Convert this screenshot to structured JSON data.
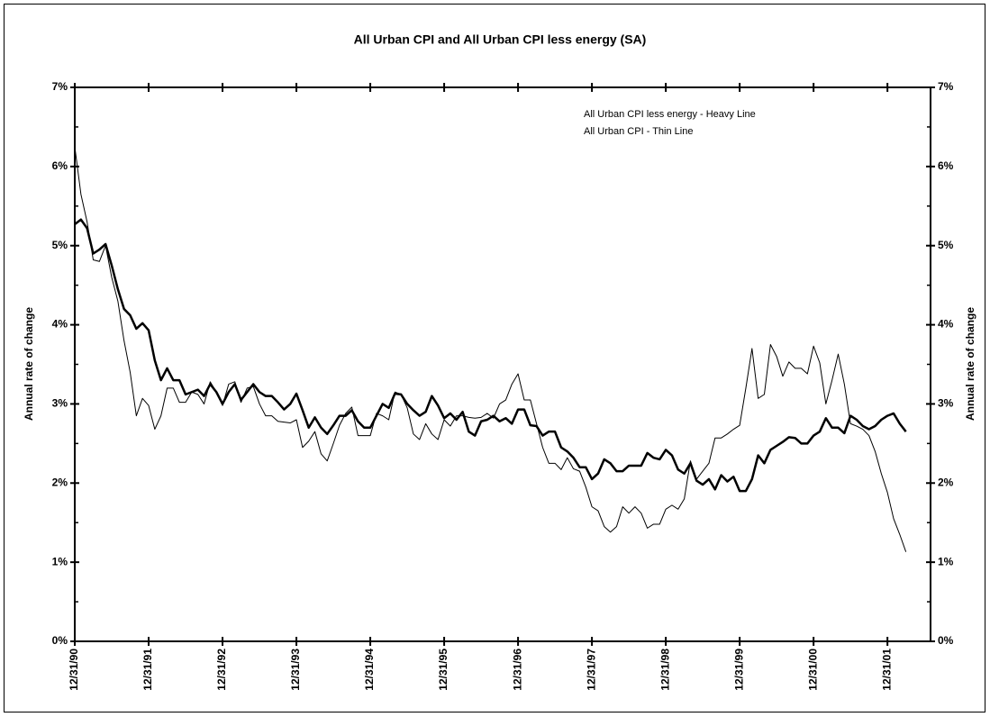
{
  "chart_data": {
    "type": "line",
    "title": "All Urban CPI and All Urban CPI less energy  (SA)",
    "ylabel": "Annual rate of change",
    "y2label": "Annual rate of change",
    "categories": [
      "12/31/90",
      null,
      null,
      null,
      null,
      null,
      null,
      null,
      null,
      null,
      null,
      null,
      "12/31/91",
      null,
      null,
      null,
      null,
      null,
      null,
      null,
      null,
      null,
      null,
      null,
      "12/31/92",
      null,
      null,
      null,
      null,
      null,
      null,
      null,
      null,
      null,
      null,
      null,
      "12/31/93",
      null,
      null,
      null,
      null,
      null,
      null,
      null,
      null,
      null,
      null,
      null,
      "12/31/94",
      null,
      null,
      null,
      null,
      null,
      null,
      null,
      null,
      null,
      null,
      null,
      "12/31/95",
      null,
      null,
      null,
      null,
      null,
      null,
      null,
      null,
      null,
      null,
      null,
      "12/31/96",
      null,
      null,
      null,
      null,
      null,
      null,
      null,
      null,
      null,
      null,
      null,
      "12/31/97",
      null,
      null,
      null,
      null,
      null,
      null,
      null,
      null,
      null,
      null,
      null,
      "12/31/98",
      null,
      null,
      null,
      null,
      null,
      null,
      null,
      null,
      null,
      null,
      null,
      "12/31/99",
      null,
      null,
      null,
      null,
      null,
      null,
      null,
      null,
      null,
      null,
      null,
      "12/31/00",
      null,
      null,
      null,
      null,
      null,
      null,
      null,
      null,
      null,
      null,
      null,
      "12/31/01",
      null,
      null,
      null,
      null,
      null,
      null,
      null
    ],
    "series": [
      {
        "name": "All Urban CPI less energy - Heavy Line",
        "color": "#000000",
        "width": 2.5,
        "values": [
          5.27,
          5.33,
          5.22,
          4.9,
          4.95,
          5.02,
          4.75,
          4.45,
          4.2,
          4.12,
          3.95,
          4.02,
          3.93,
          3.55,
          3.3,
          3.45,
          3.3,
          3.3,
          3.12,
          3.15,
          3.18,
          3.1,
          3.25,
          3.15,
          3.0,
          3.15,
          3.25,
          3.05,
          3.15,
          3.25,
          3.15,
          3.1,
          3.1,
          3.02,
          2.93,
          3.0,
          3.13,
          2.92,
          2.7,
          2.83,
          2.7,
          2.62,
          2.73,
          2.85,
          2.85,
          2.92,
          2.78,
          2.7,
          2.7,
          2.85,
          3.0,
          2.95,
          3.13,
          3.12,
          3.0,
          2.92,
          2.85,
          2.9,
          3.1,
          2.98,
          2.82,
          2.88,
          2.8,
          2.9,
          2.65,
          2.6,
          2.78,
          2.8,
          2.85,
          2.78,
          2.82,
          2.75,
          2.93,
          2.93,
          2.73,
          2.72,
          2.6,
          2.65,
          2.65,
          2.45,
          2.4,
          2.32,
          2.2,
          2.2,
          2.05,
          2.12,
          2.3,
          2.25,
          2.15,
          2.15,
          2.22,
          2.22,
          2.22,
          2.38,
          2.32,
          2.3,
          2.42,
          2.35,
          2.17,
          2.12,
          2.25,
          2.03,
          1.98,
          2.05,
          1.92,
          2.1,
          2.02,
          2.08,
          1.9,
          1.9,
          2.05,
          2.35,
          2.25,
          2.42,
          2.47,
          2.52,
          2.58,
          2.57,
          2.5,
          2.5,
          2.6,
          2.65,
          2.82,
          2.7,
          2.7,
          2.63,
          2.85,
          2.8,
          2.72,
          2.68,
          2.72,
          2.8,
          2.85,
          2.88,
          2.75,
          2.65,
          null,
          null,
          null,
          null
        ]
      },
      {
        "name": "All Urban CPI - Thin Line",
        "color": "#000000",
        "width": 1,
        "values": [
          6.25,
          5.65,
          5.3,
          4.82,
          4.8,
          5.0,
          4.6,
          4.3,
          3.8,
          3.4,
          2.85,
          3.07,
          2.98,
          2.68,
          2.85,
          3.2,
          3.2,
          3.02,
          3.02,
          3.15,
          3.12,
          3.0,
          3.28,
          3.15,
          2.98,
          3.25,
          3.28,
          3.02,
          3.2,
          3.22,
          3.0,
          2.85,
          2.85,
          2.78,
          2.77,
          2.76,
          2.8,
          2.45,
          2.53,
          2.65,
          2.37,
          2.28,
          2.5,
          2.73,
          2.88,
          2.96,
          2.6,
          2.6,
          2.6,
          2.88,
          2.85,
          2.8,
          3.15,
          3.12,
          2.95,
          2.62,
          2.55,
          2.75,
          2.62,
          2.55,
          2.8,
          2.72,
          2.85,
          2.85,
          2.83,
          2.82,
          2.83,
          2.88,
          2.82,
          3.0,
          3.05,
          3.25,
          3.38,
          3.05,
          3.05,
          2.75,
          2.45,
          2.25,
          2.25,
          2.17,
          2.32,
          2.18,
          2.15,
          1.95,
          1.7,
          1.65,
          1.45,
          1.38,
          1.45,
          1.7,
          1.62,
          1.7,
          1.62,
          1.43,
          1.48,
          1.48,
          1.67,
          1.72,
          1.67,
          1.8,
          2.28,
          2.05,
          2.15,
          2.25,
          2.57,
          2.57,
          2.62,
          2.68,
          2.73,
          3.2,
          3.7,
          3.07,
          3.12,
          3.75,
          3.6,
          3.35,
          3.53,
          3.45,
          3.45,
          3.38,
          3.73,
          3.52,
          3.0,
          3.3,
          3.63,
          3.25,
          2.75,
          2.72,
          2.68,
          2.6,
          2.4,
          2.12,
          1.88,
          1.55,
          1.35,
          1.13,
          null,
          null,
          null,
          null
        ]
      }
    ],
    "ylim": [
      0,
      7
    ],
    "yticks": [
      {
        "value": 0,
        "label": "0%"
      },
      {
        "value": 1,
        "label": "1%"
      },
      {
        "value": 2,
        "label": "2%"
      },
      {
        "value": 3,
        "label": "3%"
      },
      {
        "value": 4,
        "label": "4%"
      },
      {
        "value": 5,
        "label": "5%"
      },
      {
        "value": 6,
        "label": "6%"
      },
      {
        "value": 7,
        "label": "7%"
      }
    ],
    "y2lim": [
      0,
      7
    ],
    "y2ticks": [
      {
        "value": 0,
        "label": "0%"
      },
      {
        "value": 1,
        "label": "1%"
      },
      {
        "value": 2,
        "label": "2%"
      },
      {
        "value": 3,
        "label": "3%"
      },
      {
        "value": 4,
        "label": "4%"
      },
      {
        "value": 5,
        "label": "5%"
      },
      {
        "value": 6,
        "label": "6%"
      },
      {
        "value": 7,
        "label": "7%"
      }
    ],
    "grid": false
  }
}
